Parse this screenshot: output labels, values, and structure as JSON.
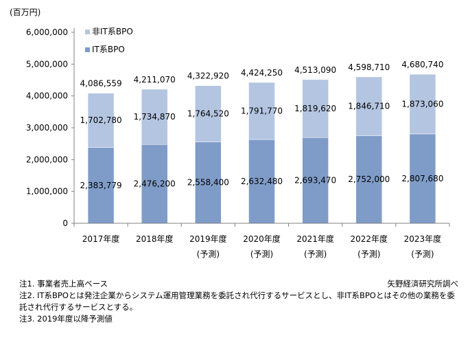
{
  "chart_data": {
    "type": "bar",
    "stacked": true,
    "y_unit": "(百万円)",
    "ylim": [
      0,
      6000000
    ],
    "y_ticks": [
      "0",
      "1,000,000",
      "2,000,000",
      "3,000,000",
      "4,000,000",
      "5,000,000",
      "6,000,000"
    ],
    "y_tick_values": [
      0,
      1000000,
      2000000,
      3000000,
      4000000,
      5000000,
      6000000
    ],
    "categories": [
      "2017年度",
      "2018年度",
      "2019年度",
      "2020年度",
      "2021年度",
      "2022年度",
      "2023年度"
    ],
    "category_sublabels": [
      "",
      "",
      "(予測)",
      "(予測)",
      "(予測)",
      "(予測)",
      "(予測)"
    ],
    "series": [
      {
        "name": "IT系BPO",
        "color": "#7f9cc8",
        "values": [
          2383779,
          2476200,
          2558400,
          2632480,
          2693470,
          2752000,
          2807680
        ],
        "labels": [
          "2,383,779",
          "2,476,200",
          "2,558,400",
          "2,632,480",
          "2,693,470",
          "2,752,000",
          "2,807,680"
        ]
      },
      {
        "name": "非IT系BPO",
        "color": "#b4c5e1",
        "values": [
          1702780,
          1734870,
          1764520,
          1791770,
          1819620,
          1846710,
          1873060
        ],
        "labels": [
          "1,702,780",
          "1,734,870",
          "1,764,520",
          "1,791,770",
          "1,819,620",
          "1,846,710",
          "1,873,060"
        ]
      }
    ],
    "totals": [
      4086559,
      4211070,
      4322920,
      4424250,
      4513090,
      4598710,
      4680740
    ],
    "total_labels": [
      "4,086,559",
      "4,211,070",
      "4,322,920",
      "4,424,250",
      "4,513,090",
      "4,598,710",
      "4,680,740"
    ],
    "legend_position": "top-left",
    "grid": false
  },
  "notes": {
    "note1": "注1. 事業者売上高ベース",
    "note2": "注2. IT系BPOとは発注企業からシステム運用管理業務を委託され代行するサービスとし、非IT系BPOとはその他の業務を委託され代行するサービスとする。",
    "note3": "注3. 2019年度以降予測値",
    "source": "矢野経済研究所調べ"
  }
}
